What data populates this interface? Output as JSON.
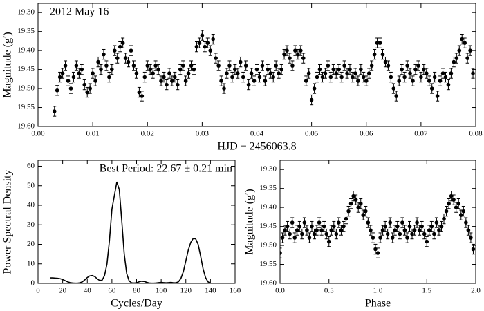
{
  "chart_data": [
    {
      "type": "errorbar",
      "annotation": "2012 May 16",
      "x_label": "HJD − 2456063.8",
      "y_label": "Magnitude (g′)",
      "xlim": [
        0,
        0.08
      ],
      "ylim": [
        19.6,
        19.276
      ],
      "xticks": [
        {
          "value": 0,
          "label": "0.00"
        },
        {
          "value": 0.01,
          "label": "0.01"
        },
        {
          "value": 0.02,
          "label": "0.02"
        },
        {
          "value": 0.03,
          "label": "0.03"
        },
        {
          "value": 0.04,
          "label": "0.04"
        },
        {
          "value": 0.05,
          "label": "0.05"
        },
        {
          "value": 0.06,
          "label": "0.06"
        },
        {
          "value": 0.07,
          "label": "0.07"
        },
        {
          "value": 0.08,
          "label": "0.08"
        }
      ],
      "yticks": [
        {
          "value": 19.3,
          "label": "19.30"
        },
        {
          "value": 19.35,
          "label": "19.35"
        },
        {
          "value": 19.4,
          "label": "19.40"
        },
        {
          "value": 19.45,
          "label": "19.45"
        },
        {
          "value": 19.5,
          "label": "19.50"
        },
        {
          "value": 19.55,
          "label": "19.55"
        },
        {
          "value": 19.6,
          "label": "19.60"
        }
      ],
      "color": "#000000",
      "error": 0.013,
      "x": [
        0.003,
        0.0035,
        0.004,
        0.0045,
        0.005,
        0.0055,
        0.006,
        0.0065,
        0.007,
        0.0075,
        0.008,
        0.0085,
        0.009,
        0.0095,
        0.01,
        0.0105,
        0.011,
        0.0115,
        0.012,
        0.0125,
        0.013,
        0.0135,
        0.014,
        0.0145,
        0.015,
        0.0155,
        0.016,
        0.0165,
        0.017,
        0.0175,
        0.018,
        0.0185,
        0.019,
        0.0195,
        0.02,
        0.0205,
        0.021,
        0.0215,
        0.022,
        0.0225,
        0.023,
        0.0235,
        0.024,
        0.0245,
        0.025,
        0.0255,
        0.026,
        0.0265,
        0.027,
        0.0275,
        0.028,
        0.0285,
        0.029,
        0.0295,
        0.03,
        0.0305,
        0.031,
        0.0315,
        0.032,
        0.0325,
        0.033,
        0.0335,
        0.034,
        0.0345,
        0.035,
        0.0355,
        0.036,
        0.0365,
        0.037,
        0.0375,
        0.038,
        0.0385,
        0.039,
        0.0395,
        0.04,
        0.0405,
        0.041,
        0.0415,
        0.042,
        0.0425,
        0.043,
        0.0435,
        0.044,
        0.0445,
        0.045,
        0.0455,
        0.046,
        0.0465,
        0.047,
        0.0475,
        0.048,
        0.0485,
        0.049,
        0.0495,
        0.05,
        0.0505,
        0.051,
        0.0515,
        0.052,
        0.0525,
        0.053,
        0.0535,
        0.054,
        0.0545,
        0.055,
        0.0555,
        0.056,
        0.0565,
        0.057,
        0.0575,
        0.058,
        0.0585,
        0.059,
        0.0595,
        0.06,
        0.0605,
        0.061,
        0.0615,
        0.062,
        0.0625,
        0.063,
        0.0635,
        0.064,
        0.0645,
        0.065,
        0.0655,
        0.066,
        0.0665,
        0.067,
        0.0675,
        0.068,
        0.0685,
        0.069,
        0.0695,
        0.07,
        0.0705,
        0.071,
        0.0715,
        0.072,
        0.0725,
        0.073,
        0.0735,
        0.074,
        0.0745,
        0.075,
        0.0755,
        0.076,
        0.0765,
        0.077,
        0.0775,
        0.078,
        0.0785,
        0.079,
        0.0795
      ],
      "values": [
        19.56,
        19.505,
        19.47,
        19.46,
        19.44,
        19.48,
        19.5,
        19.47,
        19.44,
        19.46,
        19.45,
        19.49,
        19.51,
        19.5,
        19.46,
        19.48,
        19.43,
        19.45,
        19.41,
        19.44,
        19.47,
        19.45,
        19.4,
        19.42,
        19.39,
        19.38,
        19.42,
        19.43,
        19.4,
        19.44,
        19.46,
        19.51,
        19.52,
        19.47,
        19.44,
        19.45,
        19.46,
        19.44,
        19.45,
        19.48,
        19.47,
        19.49,
        19.46,
        19.48,
        19.47,
        19.49,
        19.45,
        19.44,
        19.48,
        19.46,
        19.44,
        19.45,
        19.39,
        19.38,
        19.36,
        19.39,
        19.38,
        19.4,
        19.37,
        19.42,
        19.44,
        19.48,
        19.5,
        19.46,
        19.44,
        19.47,
        19.45,
        19.46,
        19.43,
        19.47,
        19.44,
        19.49,
        19.46,
        19.48,
        19.45,
        19.47,
        19.44,
        19.48,
        19.45,
        19.46,
        19.47,
        19.44,
        19.46,
        19.45,
        19.41,
        19.4,
        19.42,
        19.44,
        19.4,
        19.41,
        19.4,
        19.42,
        19.48,
        19.46,
        19.53,
        19.5,
        19.47,
        19.45,
        19.47,
        19.46,
        19.44,
        19.47,
        19.45,
        19.46,
        19.45,
        19.47,
        19.44,
        19.46,
        19.45,
        19.47,
        19.46,
        19.48,
        19.45,
        19.47,
        19.48,
        19.46,
        19.44,
        19.41,
        19.38,
        19.38,
        19.41,
        19.43,
        19.44,
        19.47,
        19.5,
        19.52,
        19.48,
        19.45,
        19.47,
        19.44,
        19.46,
        19.48,
        19.45,
        19.44,
        19.47,
        19.45,
        19.46,
        19.48,
        19.5,
        19.47,
        19.52,
        19.48,
        19.46,
        19.47,
        19.49,
        19.46,
        19.43,
        19.42,
        19.4,
        19.37,
        19.38,
        19.42,
        19.4,
        19.46
      ]
    },
    {
      "type": "line",
      "annotation": "Best Period: 22.67 ± 0.21 min",
      "x_label": "Cycles/Day",
      "y_label": "Power Spectral Density",
      "xlim": [
        0,
        160
      ],
      "ylim": [
        0,
        63
      ],
      "xticks": [
        0,
        20,
        40,
        60,
        80,
        100,
        120,
        140,
        160
      ],
      "yticks": [
        0,
        10,
        20,
        30,
        40,
        50,
        60
      ],
      "color": "#000000",
      "x": [
        10,
        12,
        14,
        16,
        18,
        20,
        22,
        24,
        26,
        28,
        30,
        32,
        34,
        36,
        38,
        40,
        42,
        44,
        46,
        48,
        50,
        52,
        54,
        56,
        58,
        60,
        62,
        64,
        66,
        68,
        70,
        72,
        74,
        76,
        78,
        80,
        82,
        84,
        86,
        88,
        90,
        92,
        94,
        96,
        98,
        100,
        102,
        104,
        106,
        108,
        110,
        112,
        114,
        116,
        118,
        120,
        122,
        124,
        126,
        128,
        130,
        132,
        134,
        136,
        138,
        140
      ],
      "values": [
        2.8,
        2.8,
        2.7,
        2.6,
        2.4,
        2.0,
        1.4,
        0.8,
        0.4,
        0.2,
        0.1,
        0.1,
        0.3,
        0.8,
        1.8,
        3.0,
        3.8,
        4.0,
        3.5,
        2.4,
        1.5,
        1.6,
        4,
        10,
        22,
        38,
        45,
        52,
        48,
        32,
        15,
        5,
        1.2,
        0.3,
        0.2,
        0.3,
        0.8,
        1.1,
        1.0,
        0.6,
        0.2,
        0.1,
        0.1,
        0.2,
        0.4,
        0.5,
        0.4,
        0.3,
        0.4,
        0.5,
        0.3,
        0.3,
        0.8,
        2.5,
        6,
        11.5,
        17,
        21,
        23,
        22.8,
        20,
        14,
        7.5,
        3,
        0.8,
        0.1
      ]
    },
    {
      "type": "errorbar",
      "x_label": "Phase",
      "y_label": "Magnitude (g′)",
      "xlim": [
        0,
        2
      ],
      "ylim": [
        19.6,
        19.276
      ],
      "xticks": [
        {
          "value": 0,
          "label": "0.0"
        },
        {
          "value": 0.5,
          "label": "0.5"
        },
        {
          "value": 1,
          "label": "1.0"
        },
        {
          "value": 1.5,
          "label": "1.5"
        },
        {
          "value": 2,
          "label": "2.0"
        }
      ],
      "yticks": [
        {
          "value": 19.3,
          "label": "19.30"
        },
        {
          "value": 19.35,
          "label": "19.35"
        },
        {
          "value": 19.4,
          "label": "19.40"
        },
        {
          "value": 19.45,
          "label": "19.45"
        },
        {
          "value": 19.5,
          "label": "19.50"
        },
        {
          "value": 19.55,
          "label": "19.55"
        },
        {
          "value": 19.6,
          "label": "19.60"
        }
      ],
      "color": "#000000",
      "error": 0.013,
      "x": [
        0,
        0.025,
        0.05,
        0.075,
        0.1,
        0.125,
        0.15,
        0.175,
        0.2,
        0.225,
        0.25,
        0.275,
        0.3,
        0.325,
        0.35,
        0.375,
        0.4,
        0.425,
        0.45,
        0.475,
        0.5,
        0.525,
        0.55,
        0.575,
        0.6,
        0.625,
        0.65,
        0.675,
        0.7,
        0.725,
        0.75,
        0.775,
        0.8,
        0.825,
        0.85,
        0.875,
        0.9,
        0.925,
        0.95,
        0.975,
        1,
        1.025,
        1.05,
        1.075,
        1.1,
        1.125,
        1.15,
        1.175,
        1.2,
        1.225,
        1.25,
        1.275,
        1.3,
        1.325,
        1.35,
        1.375,
        1.4,
        1.425,
        1.45,
        1.475,
        1.5,
        1.525,
        1.55,
        1.575,
        1.6,
        1.625,
        1.65,
        1.675,
        1.7,
        1.725,
        1.75,
        1.775,
        1.8,
        1.825,
        1.85,
        1.875,
        1.9,
        1.925,
        1.95,
        1.975
      ],
      "values": [
        19.52,
        19.48,
        19.46,
        19.45,
        19.47,
        19.44,
        19.48,
        19.46,
        19.45,
        19.47,
        19.44,
        19.46,
        19.48,
        19.45,
        19.47,
        19.46,
        19.44,
        19.46,
        19.45,
        19.47,
        19.49,
        19.46,
        19.45,
        19.47,
        19.44,
        19.46,
        19.45,
        19.43,
        19.41,
        19.39,
        19.37,
        19.38,
        19.4,
        19.39,
        19.42,
        19.41,
        19.44,
        19.46,
        19.48,
        19.51,
        19.52,
        19.48,
        19.46,
        19.45,
        19.47,
        19.44,
        19.48,
        19.46,
        19.45,
        19.47,
        19.44,
        19.46,
        19.48,
        19.45,
        19.47,
        19.46,
        19.44,
        19.46,
        19.45,
        19.47,
        19.49,
        19.46,
        19.45,
        19.47,
        19.44,
        19.46,
        19.45,
        19.43,
        19.41,
        19.39,
        19.37,
        19.38,
        19.4,
        19.39,
        19.42,
        19.41,
        19.44,
        19.46,
        19.48,
        19.51
      ]
    }
  ]
}
